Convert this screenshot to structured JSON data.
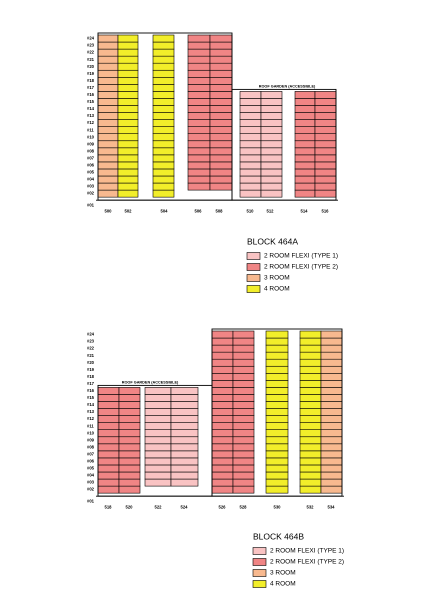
{
  "blocks": [
    {
      "title": "BLOCK 464A",
      "roof_note": "ROOF GARDEN (ACCESSIBLE)",
      "floor_labels": [
        "#24",
        "#23",
        "#22",
        "#21",
        "#20",
        "#19",
        "#18",
        "#17",
        "#16",
        "#15",
        "#14",
        "#13",
        "#12",
        "#11",
        "#10",
        "#09",
        "#08",
        "#07",
        "#06",
        "#05",
        "#04",
        "#03",
        "#02",
        "#01"
      ],
      "unit_labels": [
        "500",
        "502",
        "504",
        "506",
        "508",
        "510",
        "512",
        "514",
        "516"
      ],
      "legend": [
        "2 ROOM FLEXI (TYPE 1)",
        "2 ROOM FLEXI (TYPE 2)",
        "3 ROOM",
        "4 ROOM"
      ]
    },
    {
      "title": "BLOCK 464B",
      "roof_note": "ROOF GARDEN (ACCESSIBLE)",
      "floor_labels": [
        "#24",
        "#23",
        "#22",
        "#21",
        "#20",
        "#19",
        "#18",
        "#17",
        "#16",
        "#15",
        "#14",
        "#13",
        "#12",
        "#11",
        "#10",
        "#09",
        "#08",
        "#07",
        "#06",
        "#05",
        "#04",
        "#03",
        "#02",
        "#01"
      ],
      "unit_labels": [
        "518",
        "520",
        "522",
        "524",
        "526",
        "528",
        "530",
        "532",
        "534"
      ],
      "legend": [
        "2 ROOM FLEXI (TYPE 1)",
        "2 ROOM FLEXI (TYPE 2)",
        "3 ROOM",
        "4 ROOM"
      ]
    }
  ]
}
